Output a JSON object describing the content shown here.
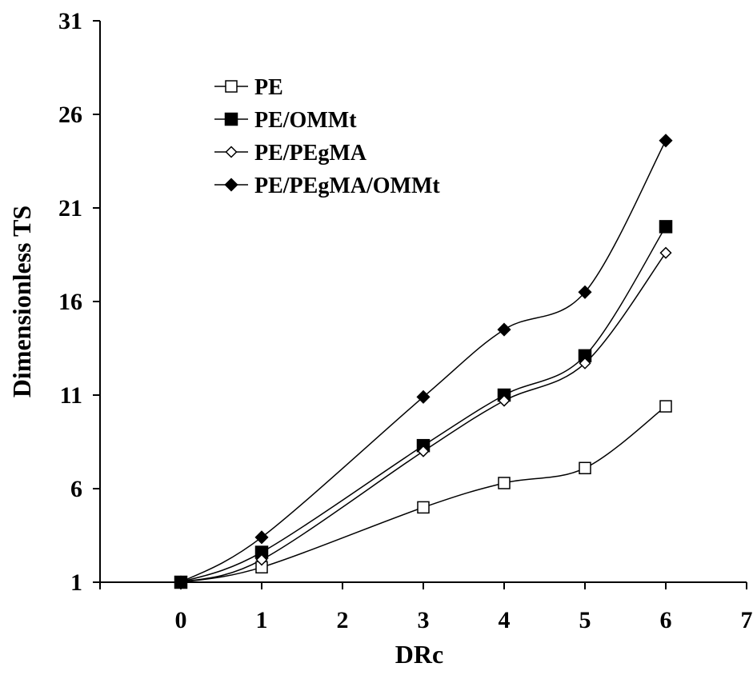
{
  "chart_data": {
    "type": "line",
    "title": "",
    "xlabel": "DRc",
    "ylabel": "Dimensionless TS",
    "xlim": [
      -1,
      7
    ],
    "ylim": [
      1,
      31
    ],
    "x_ticks": [
      0,
      1,
      2,
      3,
      4,
      5,
      6,
      7
    ],
    "y_ticks": [
      1,
      6,
      11,
      16,
      21,
      26,
      31
    ],
    "grid": false,
    "legend_position": "top-left",
    "x": [
      0,
      1,
      3,
      4,
      5,
      6
    ],
    "series": [
      {
        "name": "PE",
        "marker": "square-open",
        "values": [
          1.0,
          1.8,
          5.0,
          6.3,
          7.1,
          10.4
        ]
      },
      {
        "name": "PE/OMMt",
        "marker": "square-filled",
        "values": [
          1.0,
          2.6,
          8.3,
          11.0,
          13.1,
          20.0
        ]
      },
      {
        "name": "PE/PEgMA",
        "marker": "diamond-open",
        "values": [
          1.0,
          2.2,
          8.0,
          10.7,
          12.7,
          18.6
        ]
      },
      {
        "name": "PE/PEgMA/OMMt",
        "marker": "diamond-filled",
        "values": [
          1.0,
          3.4,
          10.9,
          14.5,
          16.5,
          24.6
        ]
      }
    ],
    "colors": {
      "line": "#000000",
      "background": "#ffffff"
    }
  }
}
